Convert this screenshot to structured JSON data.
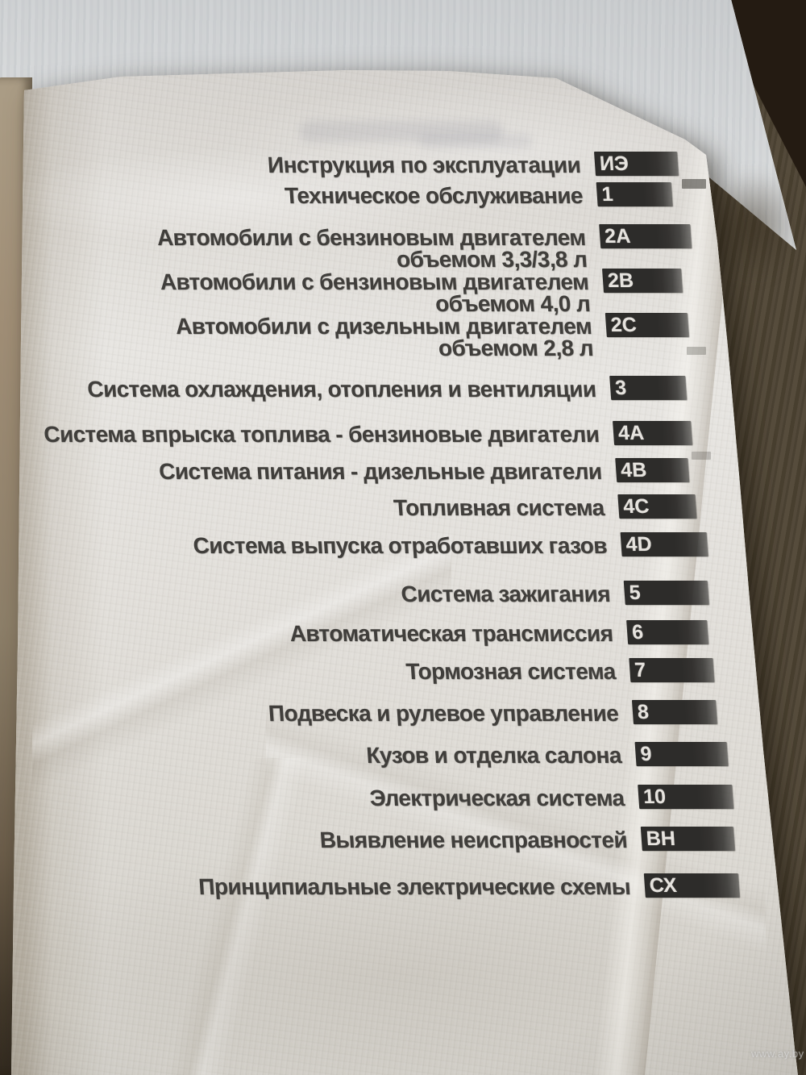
{
  "watermark": "www.ay.by",
  "toc": {
    "entries": [
      {
        "tab": "ИЭ",
        "lines": [
          "Инструкция по эксплуатации"
        ]
      },
      {
        "tab": "1",
        "lines": [
          "Техническое обслуживание"
        ]
      },
      {
        "tab": "2A",
        "lines": [
          "Автомобили с бензиновым двигателем",
          "объемом 3,3/3,8 л"
        ]
      },
      {
        "tab": "2B",
        "lines": [
          "Автомобили с бензиновым двигателем",
          "объемом 4,0 л"
        ]
      },
      {
        "tab": "2C",
        "lines": [
          "Автомобили с дизельным двигателем",
          "объемом 2,8 л"
        ]
      },
      {
        "tab": "3",
        "lines": [
          "Система охлаждения, отопления и вентиляции"
        ]
      },
      {
        "tab": "4A",
        "lines": [
          "Система впрыска топлива - бензиновые двигатели"
        ]
      },
      {
        "tab": "4B",
        "lines": [
          "Система питания - дизельные двигатели"
        ]
      },
      {
        "tab": "4C",
        "lines": [
          "Топливная система"
        ]
      },
      {
        "tab": "4D",
        "lines": [
          "Система выпуска отработавших газов"
        ]
      },
      {
        "tab": "5",
        "lines": [
          "Система зажигания"
        ]
      },
      {
        "tab": "6",
        "lines": [
          "Автоматическая трансмиссия"
        ]
      },
      {
        "tab": "7",
        "lines": [
          "Тормозная система"
        ]
      },
      {
        "tab": "8",
        "lines": [
          "Подвеска и рулевое управление"
        ]
      },
      {
        "tab": "9",
        "lines": [
          "Кузов и отделка салона"
        ]
      },
      {
        "tab": "10",
        "lines": [
          "Электрическая система"
        ]
      },
      {
        "tab": "ВН",
        "lines": [
          "Выявление неисправностей"
        ]
      },
      {
        "tab": "СХ",
        "lines": [
          "Принципиальные электрические схемы"
        ]
      }
    ]
  }
}
